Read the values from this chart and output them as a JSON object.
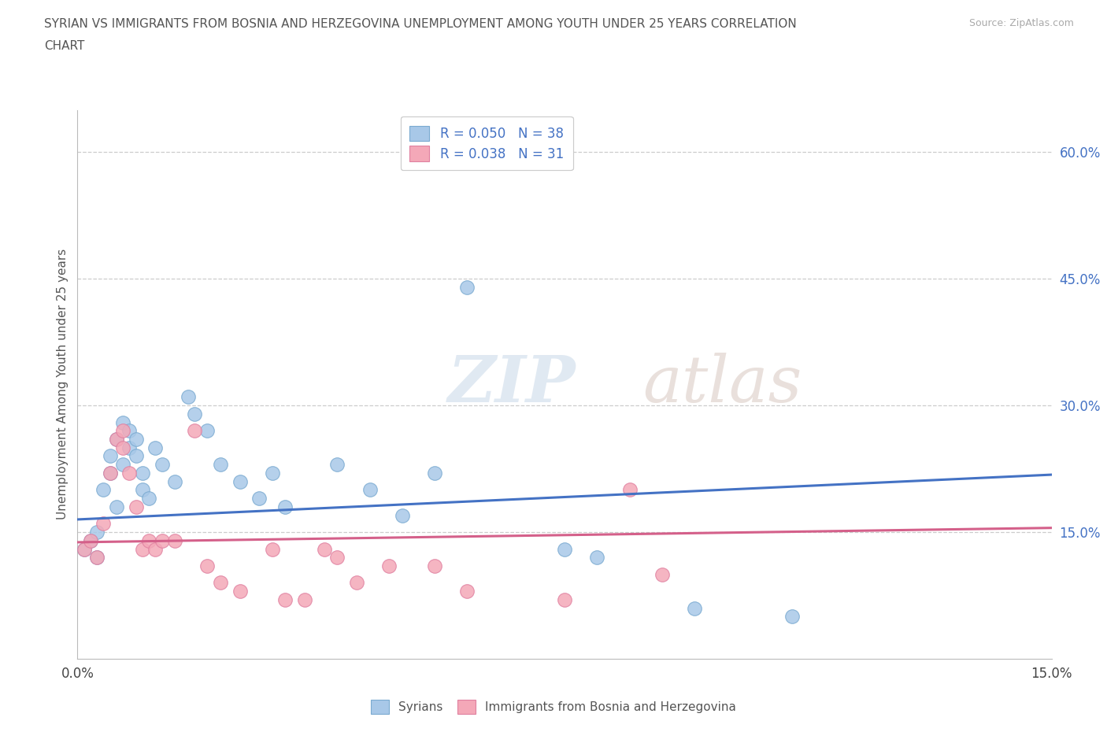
{
  "title_line1": "SYRIAN VS IMMIGRANTS FROM BOSNIA AND HERZEGOVINA UNEMPLOYMENT AMONG YOUTH UNDER 25 YEARS CORRELATION",
  "title_line2": "CHART",
  "source": "Source: ZipAtlas.com",
  "ylabel": "Unemployment Among Youth under 25 years",
  "watermark_zip": "ZIP",
  "watermark_atlas": "atlas",
  "background_color": "#ffffff",
  "plot_bg_color": "#ffffff",
  "grid_color": "#cccccc",
  "syrians_color": "#a8c8e8",
  "bosnia_color": "#f4a8b8",
  "syrians_edge_color": "#7aaad0",
  "bosnia_edge_color": "#e080a0",
  "syrians_line_color": "#4472c4",
  "bosnia_line_color": "#d4608a",
  "tick_label_color": "#4472c4",
  "R_syrians": 0.05,
  "N_syrians": 38,
  "R_bosnia": 0.038,
  "N_bosnia": 31,
  "xlim": [
    0.0,
    0.15
  ],
  "ylim": [
    0.0,
    0.65
  ],
  "xticks": [
    0.0,
    0.03,
    0.06,
    0.09,
    0.12,
    0.15
  ],
  "xticklabels": [
    "0.0%",
    "",
    "",
    "",
    "",
    "15.0%"
  ],
  "ytick_positions": [
    0.15,
    0.3,
    0.45,
    0.6
  ],
  "ytick_labels": [
    "15.0%",
    "30.0%",
    "45.0%",
    "60.0%"
  ],
  "syrians_x": [
    0.001,
    0.002,
    0.003,
    0.003,
    0.004,
    0.005,
    0.005,
    0.006,
    0.006,
    0.007,
    0.007,
    0.008,
    0.008,
    0.009,
    0.009,
    0.01,
    0.01,
    0.011,
    0.012,
    0.013,
    0.015,
    0.017,
    0.018,
    0.02,
    0.022,
    0.025,
    0.028,
    0.03,
    0.032,
    0.04,
    0.045,
    0.05,
    0.055,
    0.06,
    0.075,
    0.08,
    0.095,
    0.11
  ],
  "syrians_y": [
    0.13,
    0.14,
    0.15,
    0.12,
    0.2,
    0.22,
    0.24,
    0.18,
    0.26,
    0.28,
    0.23,
    0.25,
    0.27,
    0.26,
    0.24,
    0.22,
    0.2,
    0.19,
    0.25,
    0.23,
    0.21,
    0.31,
    0.29,
    0.27,
    0.23,
    0.21,
    0.19,
    0.22,
    0.18,
    0.23,
    0.2,
    0.17,
    0.22,
    0.44,
    0.13,
    0.12,
    0.06,
    0.05
  ],
  "bosnia_x": [
    0.001,
    0.002,
    0.003,
    0.004,
    0.005,
    0.006,
    0.007,
    0.007,
    0.008,
    0.009,
    0.01,
    0.011,
    0.012,
    0.013,
    0.015,
    0.018,
    0.02,
    0.022,
    0.025,
    0.03,
    0.032,
    0.035,
    0.038,
    0.04,
    0.043,
    0.048,
    0.055,
    0.06,
    0.075,
    0.085,
    0.09
  ],
  "bosnia_y": [
    0.13,
    0.14,
    0.12,
    0.16,
    0.22,
    0.26,
    0.27,
    0.25,
    0.22,
    0.18,
    0.13,
    0.14,
    0.13,
    0.14,
    0.14,
    0.27,
    0.11,
    0.09,
    0.08,
    0.13,
    0.07,
    0.07,
    0.13,
    0.12,
    0.09,
    0.11,
    0.11,
    0.08,
    0.07,
    0.2,
    0.1
  ],
  "syrians_trend_x": [
    0.0,
    0.15
  ],
  "syrians_trend_y": [
    0.165,
    0.218
  ],
  "bosnia_trend_x": [
    0.0,
    0.15
  ],
  "bosnia_trend_y": [
    0.138,
    0.155
  ]
}
